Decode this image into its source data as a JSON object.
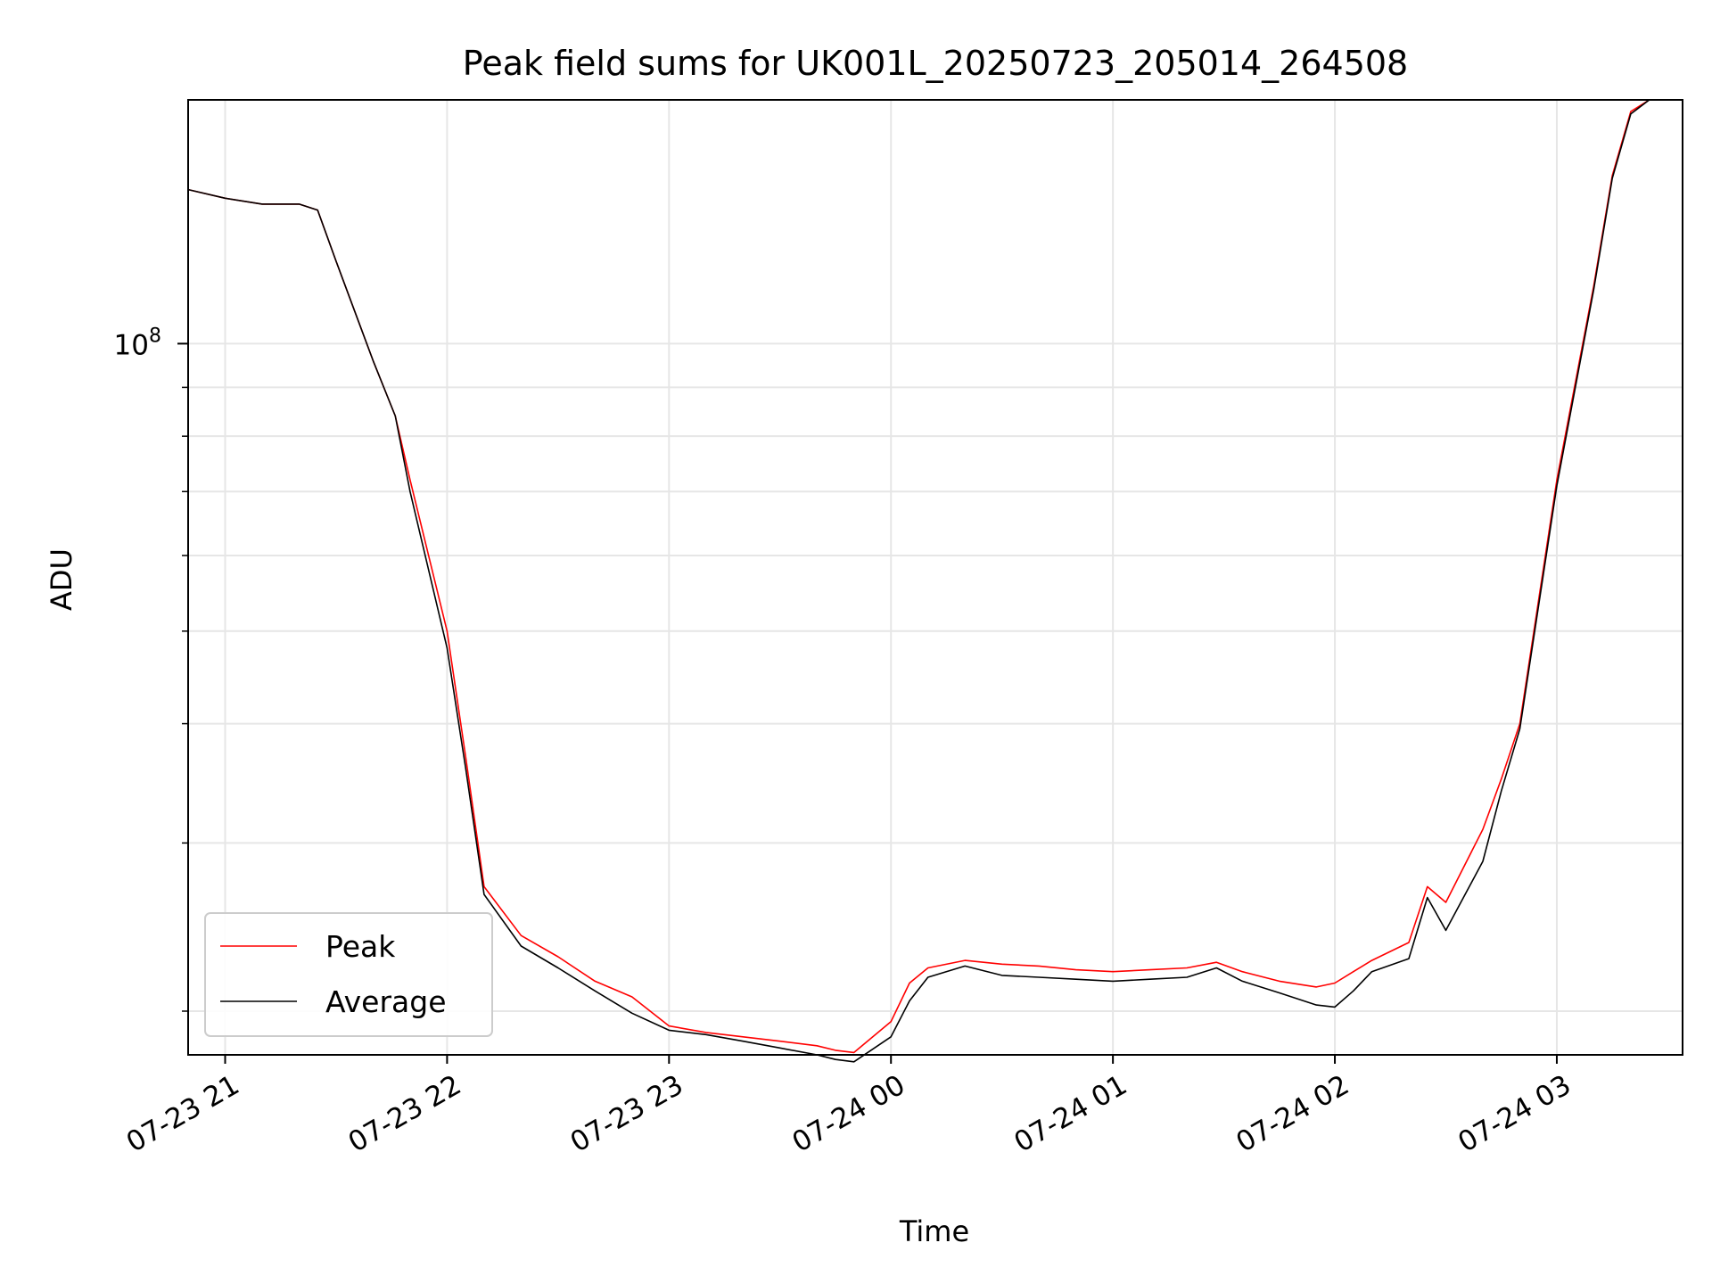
{
  "chart_data": {
    "type": "line",
    "title": "Peak field sums for UK001L_20250723_205014_264508",
    "xlabel": "Time",
    "ylabel": "ADU",
    "y_scale": "log",
    "ylim": [
      18000000,
      180000000
    ],
    "xlim": [
      "2025-07-23 20:50",
      "2025-07-24 03:34"
    ],
    "x_ticks": [
      {
        "value": "2025-07-23 21:00",
        "label": "07-23 21"
      },
      {
        "value": "2025-07-23 22:00",
        "label": "07-23 22"
      },
      {
        "value": "2025-07-23 23:00",
        "label": "07-23 23"
      },
      {
        "value": "2025-07-24 00:00",
        "label": "07-24 00"
      },
      {
        "value": "2025-07-24 01:00",
        "label": "07-24 01"
      },
      {
        "value": "2025-07-24 02:00",
        "label": "07-24 02"
      },
      {
        "value": "2025-07-24 03:00",
        "label": "07-24 03"
      }
    ],
    "y_major_ticks": [
      {
        "value": 100000000,
        "base": "10",
        "exp": "8"
      }
    ],
    "y_minor_ticks": [
      20000000,
      30000000,
      40000000,
      50000000,
      60000000,
      70000000,
      80000000,
      90000000,
      200000000
    ],
    "grid": true,
    "legend_position": "lower-left",
    "colors": {
      "peak": "#ff0000",
      "average": "#000000"
    },
    "series": [
      {
        "name": "Peak",
        "color": "#ff0000",
        "x": [
          "2025-07-23 20:50",
          "2025-07-23 21:00",
          "2025-07-23 21:10",
          "2025-07-23 21:20",
          "2025-07-23 21:25",
          "2025-07-23 21:30",
          "2025-07-23 21:40",
          "2025-07-23 21:46",
          "2025-07-23 21:50",
          "2025-07-23 22:00",
          "2025-07-23 22:05",
          "2025-07-23 22:10",
          "2025-07-23 22:20",
          "2025-07-23 22:30",
          "2025-07-23 22:40",
          "2025-07-23 22:50",
          "2025-07-23 23:00",
          "2025-07-23 23:10",
          "2025-07-23 23:20",
          "2025-07-23 23:30",
          "2025-07-23 23:40",
          "2025-07-23 23:45",
          "2025-07-23 23:50",
          "2025-07-24 00:00",
          "2025-07-24 00:05",
          "2025-07-24 00:10",
          "2025-07-24 00:20",
          "2025-07-24 00:30",
          "2025-07-24 00:40",
          "2025-07-24 00:50",
          "2025-07-24 01:00",
          "2025-07-24 01:10",
          "2025-07-24 01:20",
          "2025-07-24 01:28",
          "2025-07-24 01:35",
          "2025-07-24 01:45",
          "2025-07-24 01:55",
          "2025-07-24 02:00",
          "2025-07-24 02:05",
          "2025-07-24 02:10",
          "2025-07-24 02:20",
          "2025-07-24 02:25",
          "2025-07-24 02:30",
          "2025-07-24 02:40",
          "2025-07-24 02:45",
          "2025-07-24 02:50",
          "2025-07-24 03:00",
          "2025-07-24 03:10",
          "2025-07-24 03:15",
          "2025-07-24 03:20",
          "2025-07-24 03:25",
          "2025-07-24 03:34"
        ],
        "values": [
          145000000,
          142000000,
          140000000,
          140000000,
          138000000,
          122000000,
          96000000,
          84000000,
          72000000,
          50000000,
          37000000,
          27000000,
          24000000,
          22800000,
          21500000,
          20700000,
          19300000,
          19000000,
          18800000,
          18600000,
          18400000,
          18200000,
          18100000,
          19500000,
          21400000,
          22200000,
          22600000,
          22400000,
          22300000,
          22100000,
          22000000,
          22100000,
          22200000,
          22500000,
          22000000,
          21500000,
          21200000,
          21400000,
          22000000,
          22600000,
          23600000,
          27000000,
          26000000,
          31000000,
          35000000,
          40000000,
          72000000,
          115000000,
          150000000,
          175000000,
          180000000,
          180000000
        ]
      },
      {
        "name": "Average",
        "color": "#000000",
        "x": [
          "2025-07-23 20:50",
          "2025-07-23 21:00",
          "2025-07-23 21:10",
          "2025-07-23 21:20",
          "2025-07-23 21:25",
          "2025-07-23 21:30",
          "2025-07-23 21:40",
          "2025-07-23 21:46",
          "2025-07-23 21:50",
          "2025-07-23 22:00",
          "2025-07-23 22:05",
          "2025-07-23 22:10",
          "2025-07-23 22:20",
          "2025-07-23 22:30",
          "2025-07-23 22:40",
          "2025-07-23 22:50",
          "2025-07-23 23:00",
          "2025-07-23 23:10",
          "2025-07-23 23:20",
          "2025-07-23 23:30",
          "2025-07-23 23:40",
          "2025-07-23 23:45",
          "2025-07-23 23:50",
          "2025-07-24 00:00",
          "2025-07-24 00:05",
          "2025-07-24 00:10",
          "2025-07-24 00:20",
          "2025-07-24 00:30",
          "2025-07-24 00:40",
          "2025-07-24 00:50",
          "2025-07-24 01:00",
          "2025-07-24 01:10",
          "2025-07-24 01:20",
          "2025-07-24 01:28",
          "2025-07-24 01:35",
          "2025-07-24 01:45",
          "2025-07-24 01:55",
          "2025-07-24 02:00",
          "2025-07-24 02:05",
          "2025-07-24 02:10",
          "2025-07-24 02:20",
          "2025-07-24 02:25",
          "2025-07-24 02:30",
          "2025-07-24 02:40",
          "2025-07-24 02:45",
          "2025-07-24 02:50",
          "2025-07-24 03:00",
          "2025-07-24 03:10",
          "2025-07-24 03:15",
          "2025-07-24 03:20",
          "2025-07-24 03:25",
          "2025-07-24 03:34"
        ],
        "values": [
          145000000,
          142000000,
          140000000,
          140000000,
          138000000,
          122000000,
          96000000,
          84000000,
          70000000,
          48000000,
          36000000,
          26500000,
          23400000,
          22200000,
          21000000,
          19900000,
          19100000,
          18900000,
          18600000,
          18300000,
          18000000,
          17800000,
          17700000,
          18800000,
          20500000,
          21700000,
          22300000,
          21800000,
          21700000,
          21600000,
          21500000,
          21600000,
          21700000,
          22200000,
          21500000,
          20900000,
          20300000,
          20200000,
          21000000,
          22000000,
          22700000,
          26300000,
          24300000,
          28700000,
          34000000,
          39500000,
          71000000,
          114000000,
          149000000,
          174000000,
          180000000,
          180000000
        ]
      }
    ]
  }
}
